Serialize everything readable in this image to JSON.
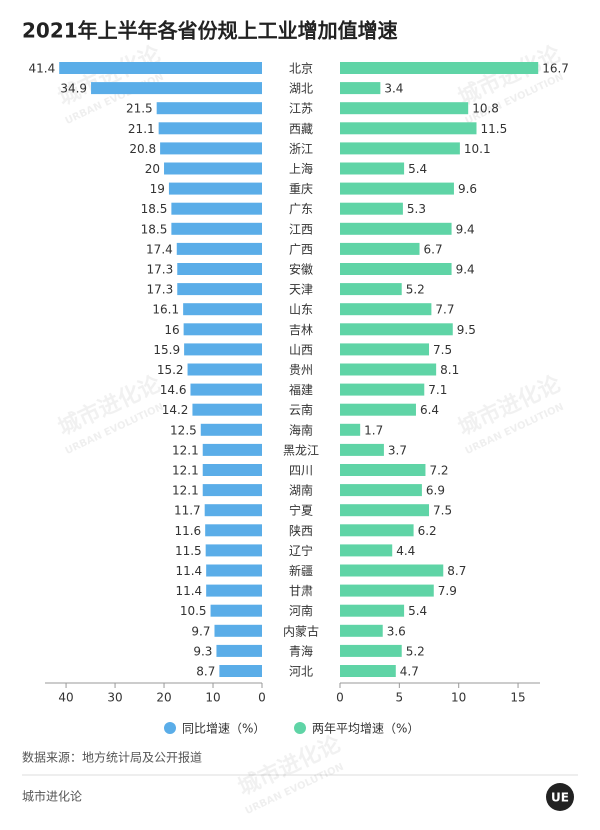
{
  "chart_data": {
    "type": "butterfly",
    "title": "2021年上半年各省份规上工业增加值增速",
    "categories": [
      "北京",
      "湖北",
      "江苏",
      "西藏",
      "浙江",
      "上海",
      "重庆",
      "广东",
      "江西",
      "广西",
      "安徽",
      "天津",
      "山东",
      "吉林",
      "山西",
      "贵州",
      "福建",
      "云南",
      "海南",
      "黑龙江",
      "四川",
      "湖南",
      "宁夏",
      "陕西",
      "辽宁",
      "新疆",
      "甘肃",
      "河南",
      "内蒙古",
      "青海",
      "河北"
    ],
    "series": [
      {
        "name": "同比增速（%）",
        "color": "#5aade8",
        "values": [
          41.4,
          34.9,
          21.5,
          21.1,
          20.8,
          20,
          19,
          18.5,
          18.5,
          17.4,
          17.3,
          17.3,
          16.1,
          16,
          15.9,
          15.2,
          14.6,
          14.2,
          12.5,
          12.1,
          12.1,
          12.1,
          11.7,
          11.6,
          11.5,
          11.4,
          11.4,
          10.5,
          9.7,
          9.3,
          8.7
        ],
        "xlim": [
          0,
          44.3
        ],
        "xticks": [
          0,
          10,
          20,
          30,
          40
        ]
      },
      {
        "name": "两年平均增速（%）",
        "color": "#5fd4a6",
        "values": [
          16.7,
          3.4,
          10.8,
          11.5,
          10.1,
          5.4,
          9.6,
          5.3,
          9.4,
          6.7,
          9.4,
          5.2,
          7.7,
          9.5,
          7.5,
          8.1,
          7.1,
          6.4,
          1.7,
          3.7,
          7.2,
          6.9,
          7.5,
          6.2,
          4.4,
          8.7,
          7.9,
          5.4,
          3.6,
          5.2,
          4.7
        ],
        "xlim": [
          0,
          16.85
        ],
        "xticks": [
          0,
          5,
          10,
          15
        ]
      }
    ],
    "source": "数据来源：地方统计局及公开报道",
    "footer": "城市进化论",
    "watermark": [
      "城市进化论",
      "URBAN EVOLUTION"
    ],
    "logo": "UE"
  }
}
